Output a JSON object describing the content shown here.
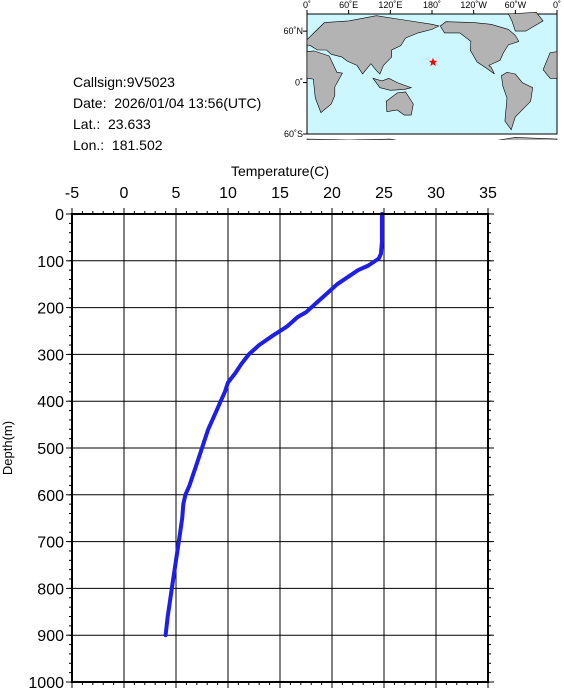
{
  "info": {
    "callsign": "Callsign:9V5023",
    "date": "Date:  2026/01/04 13:56(UTC)",
    "lat": "Lat.:  23.633",
    "lon": "Lon.:  181.502"
  },
  "map": {
    "top_labels": [
      "0˚",
      "60˚E",
      "120˚E",
      "180˚",
      "120˚W",
      "60˚W",
      "0˚"
    ],
    "left_labels": [
      "60˚N",
      "0˚",
      "60˚S"
    ],
    "marker": {
      "lat": 23.633,
      "lon": 181.502,
      "color": "#ff0000"
    },
    "ocean_color": "#ccf7ff",
    "land_color": "#b3b3b3"
  },
  "chart_data": {
    "type": "line",
    "xlabel": "Temperature(C)",
    "ylabel": "Depth(m)",
    "xlim": [
      -5,
      35
    ],
    "ylim": [
      0,
      1000
    ],
    "y_inverted": true,
    "x_ticks": [
      "-5",
      "0",
      "5",
      "10",
      "15",
      "20",
      "25",
      "30",
      "35"
    ],
    "y_ticks": [
      "0",
      "100",
      "200",
      "300",
      "400",
      "500",
      "600",
      "700",
      "800",
      "900",
      "1000"
    ],
    "grid": true,
    "line_color": "#1e1ee6",
    "series": [
      {
        "temperature": [
          24.8,
          24.8,
          24.8,
          24.7,
          24.5,
          23.5,
          22.5,
          21.5,
          20.5,
          19.5,
          18.5,
          17.5,
          16.7,
          15.7,
          14.3,
          13.0,
          12.0,
          11.3,
          10.7,
          10.0,
          9.7,
          9.3,
          8.9,
          8.5,
          8.1,
          7.8,
          7.5,
          7.2,
          6.9,
          6.6,
          6.3,
          5.9,
          5.7,
          5.6,
          5.4,
          5.2,
          5.0,
          4.8,
          4.6,
          4.4,
          4.2,
          4.0
        ],
        "depth": [
          0,
          20,
          60,
          85,
          95,
          110,
          120,
          135,
          150,
          170,
          190,
          210,
          220,
          240,
          260,
          280,
          300,
          320,
          340,
          360,
          380,
          400,
          420,
          440,
          460,
          480,
          500,
          520,
          540,
          560,
          580,
          600,
          620,
          650,
          680,
          710,
          740,
          770,
          800,
          830,
          860,
          900
        ]
      }
    ]
  }
}
